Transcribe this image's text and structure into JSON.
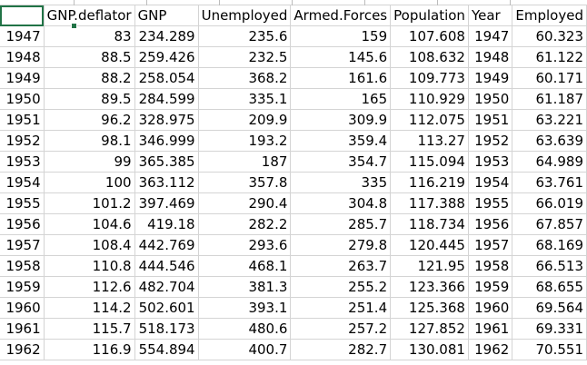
{
  "columns": [
    "",
    "GNP.deflator",
    "GNP",
    "Unemployed",
    "Armed.Forces",
    "Population",
    "Year",
    "Employed"
  ],
  "rows": [
    [
      "1947",
      "83",
      "234.289",
      "235.6",
      "159",
      "107.608",
      "1947",
      "60.323"
    ],
    [
      "1948",
      "88.5",
      "259.426",
      "232.5",
      "145.6",
      "108.632",
      "1948",
      "61.122"
    ],
    [
      "1949",
      "88.2",
      "258.054",
      "368.2",
      "161.6",
      "109.773",
      "1949",
      "60.171"
    ],
    [
      "1950",
      "89.5",
      "284.599",
      "335.1",
      "165",
      "110.929",
      "1950",
      "61.187"
    ],
    [
      "1951",
      "96.2",
      "328.975",
      "209.9",
      "309.9",
      "112.075",
      "1951",
      "63.221"
    ],
    [
      "1952",
      "98.1",
      "346.999",
      "193.2",
      "359.4",
      "113.27",
      "1952",
      "63.639"
    ],
    [
      "1953",
      "99",
      "365.385",
      "187",
      "354.7",
      "115.094",
      "1953",
      "64.989"
    ],
    [
      "1954",
      "100",
      "363.112",
      "357.8",
      "335",
      "116.219",
      "1954",
      "63.761"
    ],
    [
      "1955",
      "101.2",
      "397.469",
      "290.4",
      "304.8",
      "117.388",
      "1955",
      "66.019"
    ],
    [
      "1956",
      "104.6",
      "419.18",
      "282.2",
      "285.7",
      "118.734",
      "1956",
      "67.857"
    ],
    [
      "1957",
      "108.4",
      "442.769",
      "293.6",
      "279.8",
      "120.445",
      "1957",
      "68.169"
    ],
    [
      "1958",
      "110.8",
      "444.546",
      "468.1",
      "263.7",
      "121.95",
      "1958",
      "66.513"
    ],
    [
      "1959",
      "112.6",
      "482.704",
      "381.3",
      "255.2",
      "123.366",
      "1959",
      "68.655"
    ],
    [
      "1960",
      "114.2",
      "502.601",
      "393.1",
      "251.4",
      "125.368",
      "1960",
      "69.564"
    ],
    [
      "1961",
      "115.7",
      "518.173",
      "480.6",
      "257.2",
      "127.852",
      "1961",
      "69.331"
    ],
    [
      "1962",
      "116.9",
      "554.894",
      "400.7",
      "282.7",
      "130.081",
      "1962",
      "70.551"
    ]
  ],
  "colors": {
    "selection": "#217346",
    "gridline": "#d4d4d4"
  }
}
